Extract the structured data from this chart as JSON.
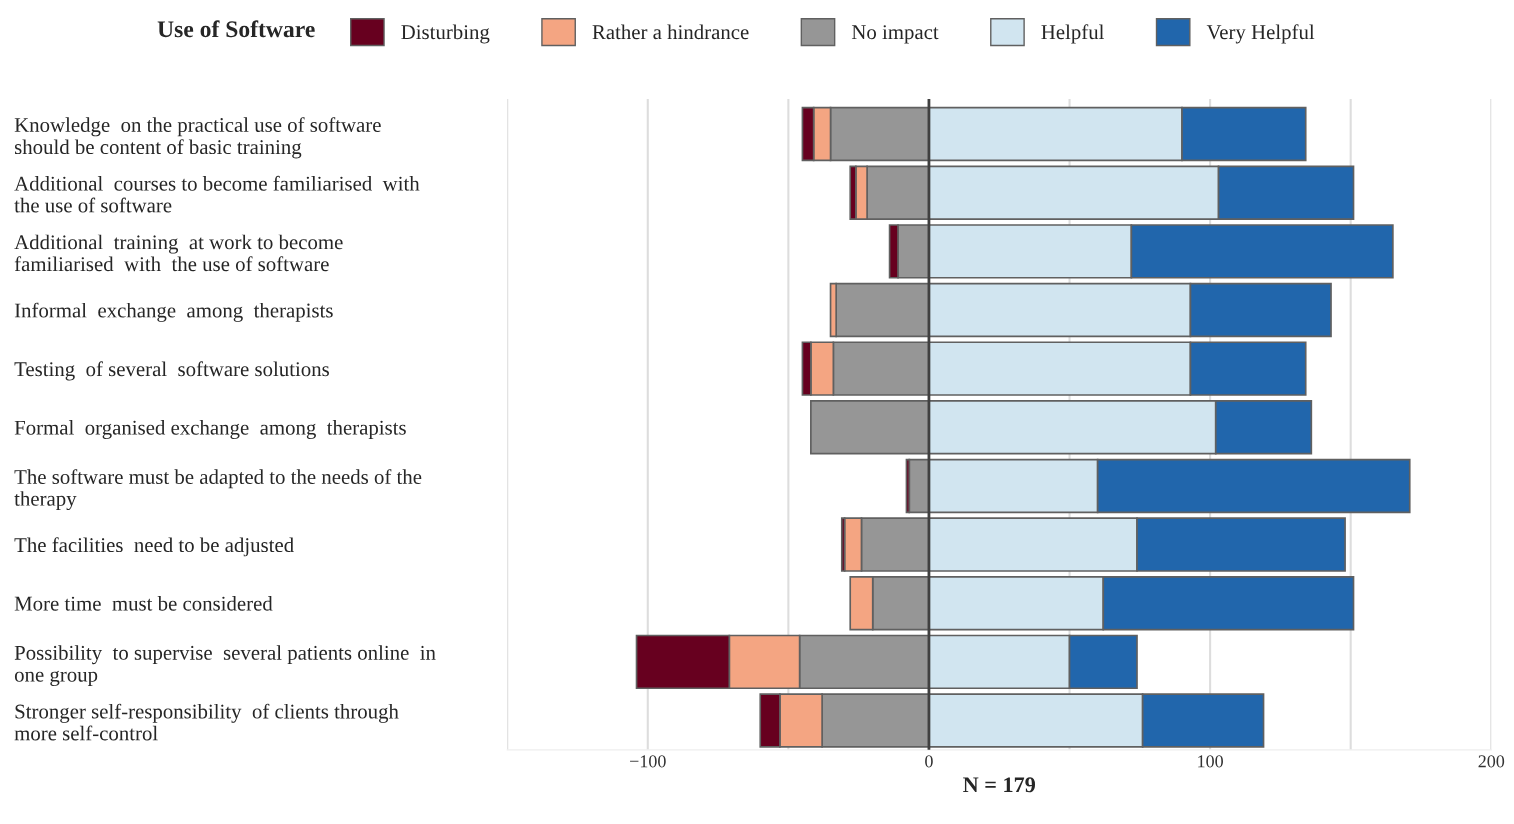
{
  "chart_data": {
    "type": "bar",
    "orientation": "horizontal",
    "stacked": true,
    "legend_title": "Use of Software",
    "xlabel": "N = 179",
    "categories": [
      "Knowledge  on the practical use of software\nshould be content of basic training",
      "Additional  courses to become familiarised  with\nthe use of software",
      "Additional  training  at work to become\nfamiliarised  with  the use of software",
      "Informal  exchange  among  therapists",
      "Testing  of several  software solutions",
      "Formal  organised exchange  among  therapists",
      "The software must be adapted to the needs of the\ntherapy",
      "The facilities  need to be adjusted",
      "More time  must be considered",
      "Possibility  to supervise  several patients online  in\none group",
      "Stronger self-responsibility  of clients through\nmore self-control"
    ],
    "series": [
      {
        "name": "No impact",
        "color": "#969696",
        "values": [
          -35,
          -22,
          -11,
          -33,
          -34,
          -42,
          -7,
          -24,
          -20,
          -46,
          -38
        ]
      },
      {
        "name": "Rather a hindrance",
        "color": "#f4a582",
        "values": [
          -6,
          -4,
          0,
          -2,
          -8,
          0,
          0,
          -6,
          -8,
          -25,
          -15
        ]
      },
      {
        "name": "Disturbing",
        "color": "#67001f",
        "values": [
          -4,
          -2,
          -3,
          0,
          -3,
          0,
          -1,
          -1,
          0,
          -33,
          -7
        ]
      },
      {
        "name": "Helpful",
        "color": "#d1e5f0",
        "values": [
          90,
          103,
          72,
          93,
          93,
          102,
          60,
          74,
          62,
          50,
          76
        ]
      },
      {
        "name": "Very Helpful",
        "color": "#2166ac",
        "values": [
          44,
          48,
          93,
          50,
          41,
          34,
          111,
          74,
          89,
          24,
          43
        ]
      }
    ],
    "xlim": [
      -150,
      200
    ],
    "xticks": [
      {
        "value": -150,
        "label": null
      },
      -100,
      {
        "value": -50,
        "label": null
      },
      0,
      {
        "value": 50,
        "label": null
      },
      100,
      {
        "value": 150,
        "label": null
      },
      200
    ],
    "ref_lines": [
      {
        "axis": "x",
        "value": 0,
        "color": "#404040"
      }
    ],
    "grid": "x",
    "legend": "top"
  }
}
